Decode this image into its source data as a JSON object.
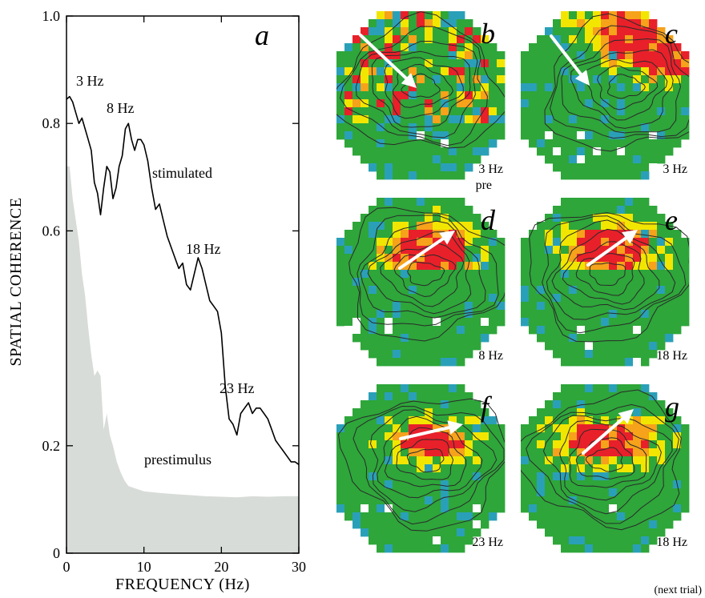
{
  "chart_data": [
    {
      "type": "area",
      "panel": "a",
      "xlabel": "FREQUENCY (Hz)",
      "ylabel": "SPATIAL COHERENCE",
      "xlim": [
        0,
        30
      ],
      "ylim": [
        0,
        1.0
      ],
      "xticks": [
        "0",
        "10",
        "20",
        "30"
      ],
      "yticks": [
        "0",
        "0.2",
        "0.6",
        "0.8",
        "1.0"
      ],
      "ytick_values": [
        0,
        0.2,
        0.6,
        0.8,
        1.0
      ],
      "grid": false,
      "annotations": [
        "3 Hz",
        "8 Hz",
        "18 Hz",
        "23 Hz",
        "stimulated",
        "prestimulus"
      ],
      "series": [
        {
          "name": "stimulated",
          "style": "line",
          "color": "#000000",
          "x": [
            0,
            0.4,
            0.8,
            1.2,
            1.6,
            2.0,
            2.4,
            2.8,
            3.2,
            3.6,
            4.0,
            4.4,
            4.8,
            5.2,
            5.6,
            6.0,
            6.4,
            6.8,
            7.2,
            7.6,
            8.0,
            8.4,
            8.8,
            9.2,
            9.6,
            10.0,
            10.5,
            11.0,
            11.5,
            12.0,
            12.5,
            13.0,
            13.5,
            14.0,
            14.5,
            15.0,
            15.5,
            16.0,
            16.5,
            17.0,
            17.5,
            18.0,
            18.5,
            19.0,
            19.5,
            20.0,
            20.5,
            21.0,
            21.5,
            22.0,
            22.5,
            23.0,
            23.5,
            24.0,
            24.5,
            25.0,
            25.5,
            26.0,
            26.5,
            27.0,
            27.5,
            28.0,
            28.5,
            29.0,
            29.5,
            30.0
          ],
          "y": [
            0.845,
            0.85,
            0.84,
            0.82,
            0.8,
            0.81,
            0.79,
            0.77,
            0.75,
            0.69,
            0.67,
            0.63,
            0.68,
            0.72,
            0.71,
            0.66,
            0.68,
            0.72,
            0.74,
            0.79,
            0.8,
            0.77,
            0.75,
            0.77,
            0.77,
            0.76,
            0.73,
            0.68,
            0.64,
            0.65,
            0.62,
            0.59,
            0.57,
            0.55,
            0.53,
            0.54,
            0.5,
            0.49,
            0.52,
            0.55,
            0.53,
            0.5,
            0.47,
            0.46,
            0.45,
            0.41,
            0.31,
            0.25,
            0.24,
            0.22,
            0.26,
            0.27,
            0.28,
            0.26,
            0.27,
            0.27,
            0.26,
            0.25,
            0.23,
            0.21,
            0.2,
            0.19,
            0.18,
            0.17,
            0.17,
            0.165
          ]
        },
        {
          "name": "prestimulus",
          "style": "filled-area",
          "color": "#d8dcd8",
          "x": [
            0,
            0.4,
            0.8,
            1.2,
            1.6,
            2.0,
            2.4,
            2.8,
            3.2,
            3.6,
            4.0,
            4.4,
            4.8,
            5.2,
            5.6,
            6.0,
            6.5,
            7.0,
            7.5,
            8.0,
            9.0,
            10.0,
            12.0,
            14.0,
            16.0,
            18.0,
            20.0,
            22.0,
            24.0,
            26.0,
            28.0,
            30.0
          ],
          "y": [
            0.72,
            0.72,
            0.66,
            0.62,
            0.58,
            0.52,
            0.48,
            0.42,
            0.37,
            0.33,
            0.34,
            0.33,
            0.23,
            0.26,
            0.22,
            0.2,
            0.17,
            0.15,
            0.135,
            0.125,
            0.12,
            0.115,
            0.112,
            0.11,
            0.108,
            0.106,
            0.105,
            0.104,
            0.106,
            0.105,
            0.106,
            0.106
          ]
        }
      ]
    },
    {
      "type": "heatmap",
      "panels": [
        {
          "letter": "b",
          "caption": "3 Hz",
          "caption2": "pre"
        },
        {
          "letter": "c",
          "caption": "3 Hz",
          "caption2": ""
        },
        {
          "letter": "d",
          "caption": "8 Hz",
          "caption2": ""
        },
        {
          "letter": "e",
          "caption": "18 Hz",
          "caption2": ""
        },
        {
          "letter": "f",
          "caption": "23 Hz",
          "caption2": ""
        },
        {
          "letter": "g",
          "caption": "18 Hz",
          "caption2": ""
        }
      ],
      "bottom_note": "(next trial)",
      "colors": {
        "base": "#2ea63a",
        "teal": "#2aa0b8",
        "yellow": "#f2e600",
        "orange": "#f6a21a",
        "red": "#e8202a",
        "contour": "#2a2a2a",
        "arrow": "#ffffff"
      }
    }
  ]
}
